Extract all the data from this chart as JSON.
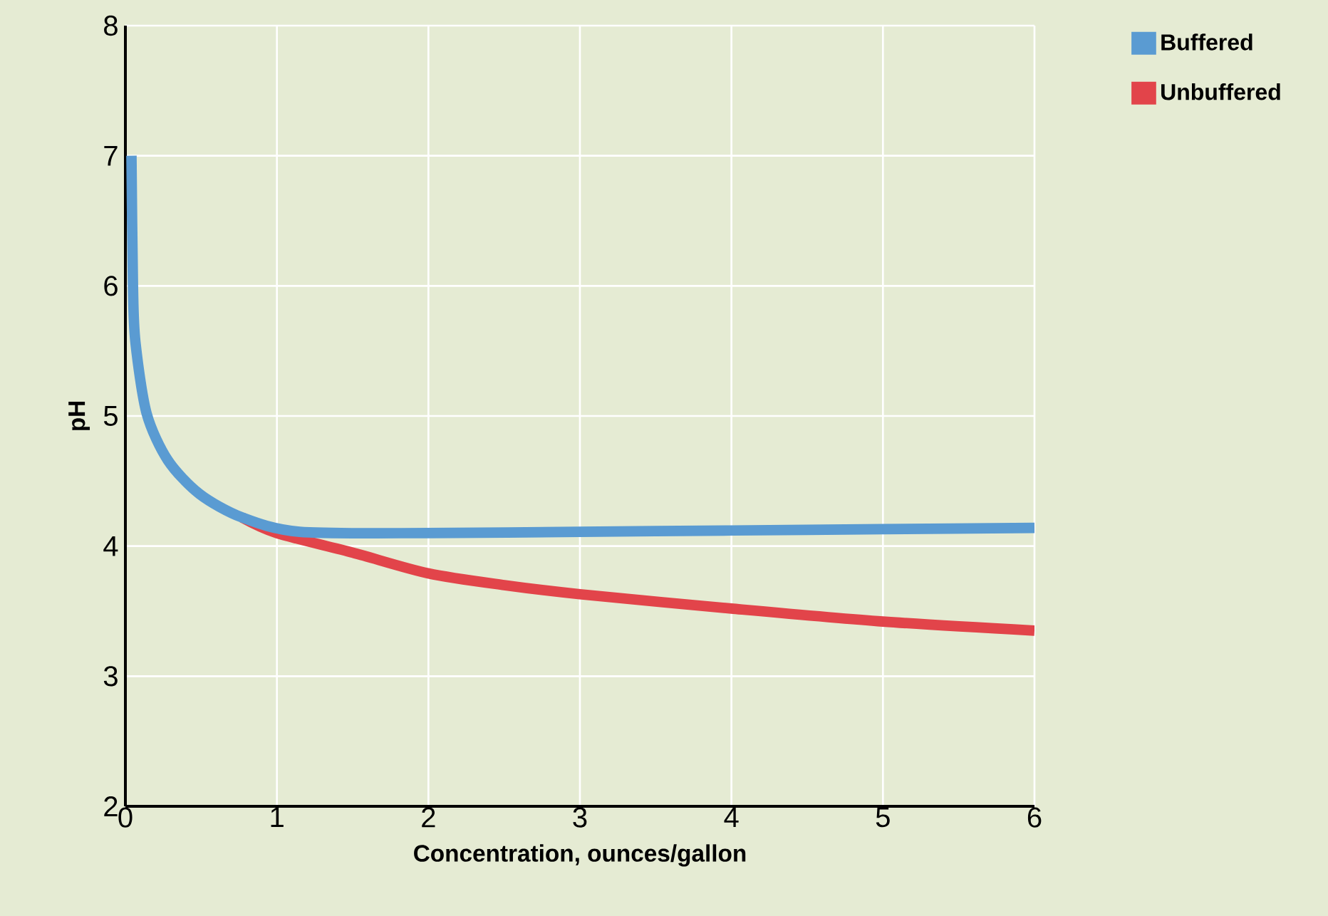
{
  "chart_data": {
    "type": "line",
    "xlabel": "Concentration, ounces/gallon",
    "ylabel": "pH",
    "xlim": [
      0,
      6
    ],
    "ylim": [
      2,
      8
    ],
    "xticks": [
      0,
      1,
      2,
      3,
      4,
      5,
      6
    ],
    "yticks": [
      2,
      3,
      4,
      5,
      6,
      7,
      8
    ],
    "grid": true,
    "legend": "top right",
    "marker": "none",
    "line_style": "solid",
    "series": [
      {
        "name": "Buffered",
        "color": "#5a9bd2",
        "x": [
          0.04,
          0.05,
          0.066,
          0.14,
          0.28,
          0.49,
          0.77,
          1.15,
          2,
          3,
          4,
          5,
          6
        ],
        "values": [
          7.0,
          6.0,
          5.57,
          5.02,
          4.66,
          4.4,
          4.22,
          4.11,
          4.1,
          4.11,
          4.12,
          4.13,
          4.14
        ]
      },
      {
        "name": "Unbuffered",
        "color": "#e2444a",
        "x": [
          0.77,
          1.0,
          1.5,
          2,
          2.5,
          3,
          4,
          5,
          6
        ],
        "values": [
          4.22,
          4.1,
          3.95,
          3.79,
          3.7,
          3.63,
          3.52,
          3.42,
          3.35
        ]
      }
    ]
  }
}
